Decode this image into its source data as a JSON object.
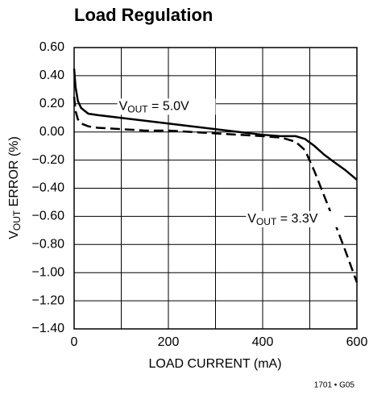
{
  "chart_data": {
    "type": "line",
    "title": "Load Regulation",
    "xlabel": "LOAD CURRENT (mA)",
    "ylabel": [
      "V",
      "OUT",
      " ERROR (%)"
    ],
    "xlim": [
      0,
      600
    ],
    "xticks": [
      0,
      200,
      400,
      600
    ],
    "xgrid": [
      0,
      100,
      200,
      300,
      400,
      500,
      600
    ],
    "ylim": [
      -1.4,
      0.6
    ],
    "yticks": [
      {
        "value": 0.6,
        "label": "0.60"
      },
      {
        "value": 0.4,
        "label": "0.40"
      },
      {
        "value": 0.2,
        "label": "0.20"
      },
      {
        "value": 0,
        "label": "0.00"
      },
      {
        "value": -0.2,
        "label": "−0.20"
      },
      {
        "value": -0.4,
        "label": "−0.40"
      },
      {
        "value": -0.6,
        "label": "−0.60"
      },
      {
        "value": -0.8,
        "label": "−0.80"
      },
      {
        "value": -1.0,
        "label": "−1.00"
      },
      {
        "value": -1.2,
        "label": "−1.20"
      },
      {
        "value": -1.4,
        "label": "−1.40"
      }
    ],
    "grid": true,
    "series": [
      {
        "name": [
          "V",
          "OUT",
          " = 5.0V"
        ],
        "color": "#000",
        "dash": false,
        "x": [
          0,
          3,
          8,
          15,
          30,
          50,
          100,
          150,
          200,
          250,
          300,
          350,
          400,
          440,
          470,
          490,
          510,
          530,
          550,
          575,
          600
        ],
        "values": [
          0.45,
          0.32,
          0.22,
          0.17,
          0.13,
          0.12,
          0.1,
          0.08,
          0.06,
          0.04,
          0.02,
          0.0,
          -0.02,
          -0.03,
          -0.03,
          -0.05,
          -0.1,
          -0.16,
          -0.21,
          -0.27,
          -0.34
        ]
      },
      {
        "name": [
          "V",
          "OUT",
          " = 3.3V"
        ],
        "color": "#000",
        "dash": true,
        "x": [
          0,
          3,
          8,
          15,
          30,
          50,
          100,
          150,
          200,
          250,
          300,
          350,
          400,
          440,
          470,
          490,
          510,
          530,
          550,
          575,
          600
        ],
        "values": [
          0.25,
          0.15,
          0.09,
          0.06,
          0.04,
          0.03,
          0.02,
          0.01,
          0.01,
          0.0,
          -0.01,
          -0.02,
          -0.03,
          -0.04,
          -0.07,
          -0.13,
          -0.28,
          -0.45,
          -0.62,
          -0.84,
          -1.07
        ]
      }
    ],
    "annotations": [
      {
        "series": 0,
        "x": 95,
        "y": 0.18
      },
      {
        "series": 1,
        "x": 368,
        "y": -0.62
      }
    ],
    "footer": "1701 • G05"
  }
}
